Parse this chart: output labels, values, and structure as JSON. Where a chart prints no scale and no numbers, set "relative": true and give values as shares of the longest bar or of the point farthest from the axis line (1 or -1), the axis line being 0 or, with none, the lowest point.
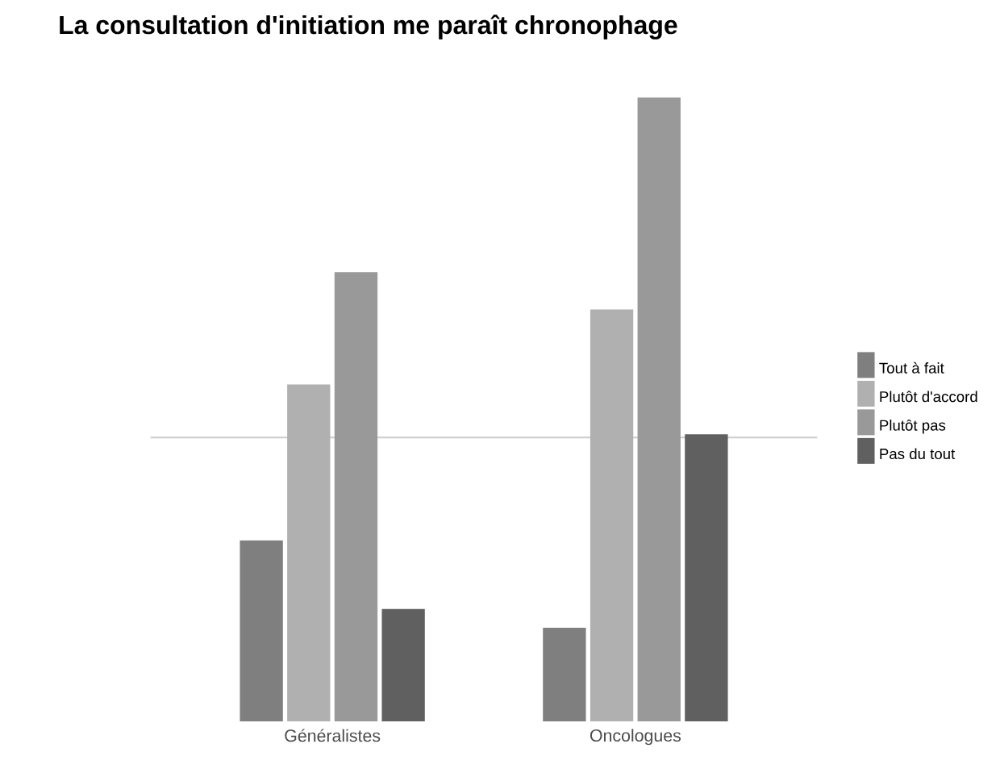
{
  "chart_data": {
    "type": "bar",
    "title": "La consultation d'initiation me paraît chronophage",
    "relative": true,
    "categories": [
      "Généralistes",
      "Oncologues"
    ],
    "series": [
      {
        "name": "Tout à fait",
        "color": "#7f7f7f",
        "values": [
          0.29,
          0.15
        ]
      },
      {
        "name": "Plutôt d'accord",
        "color": "#b0b0b0",
        "values": [
          0.54,
          0.66
        ]
      },
      {
        "name": "Plutôt pas",
        "color": "#999999",
        "values": [
          0.72,
          1
        ]
      },
      {
        "name": "Pas du tout",
        "color": "#606060",
        "values": [
          0.18,
          0.46
        ]
      }
    ],
    "ref_lines": [
      {
        "axis": "y",
        "value": 0.455,
        "color": "#d0d0d0"
      }
    ],
    "legend": "right"
  }
}
